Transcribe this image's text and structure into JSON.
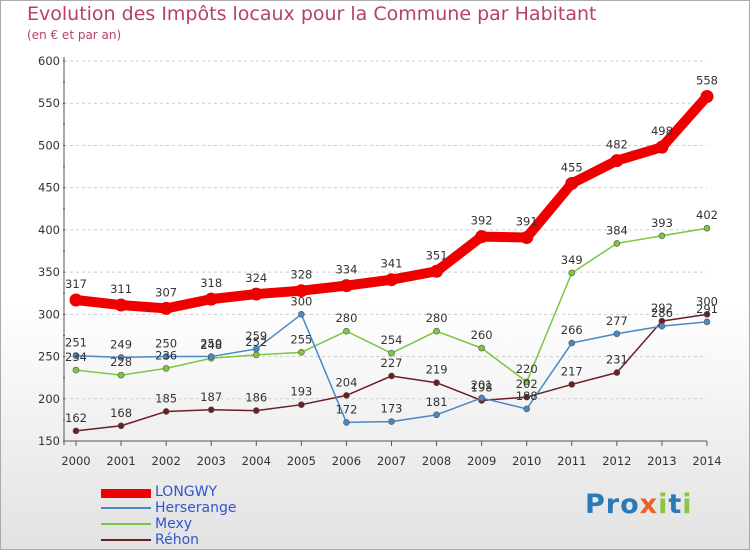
{
  "title": "Evolution des Impôts locaux pour la Commune par Habitant",
  "subtitle": "(en € et par an)",
  "logo_text": "Proxiti",
  "chart_data": {
    "type": "line",
    "title": "Evolution des Impôts locaux pour la Commune par Habitant",
    "subtitle": "(en € et par an)",
    "xlabel": "",
    "ylabel": "",
    "x": [
      "2000",
      "2001",
      "2002",
      "2003",
      "2004",
      "2005",
      "2006",
      "2007",
      "2008",
      "2009",
      "2010",
      "2011",
      "2012",
      "2013",
      "2014"
    ],
    "ylim": [
      150,
      600
    ],
    "yticks": [
      "150",
      "200",
      "250",
      "300",
      "350",
      "400",
      "450",
      "500",
      "550",
      "600"
    ],
    "grid": "horizontal",
    "legend_position": "bottom-left",
    "series": [
      {
        "name": "LONGWY",
        "color": "#ee0000",
        "values": [
          317,
          311,
          307,
          318,
          324,
          328,
          334,
          341,
          351,
          392,
          391,
          455,
          482,
          498,
          558
        ]
      },
      {
        "name": "Herserange",
        "color": "#4a88c4",
        "values": [
          251,
          249,
          250,
          250,
          259,
          300,
          172,
          173,
          181,
          201,
          188,
          266,
          277,
          286,
          291
        ]
      },
      {
        "name": "Mexy",
        "color": "#7cc642",
        "values": [
          234,
          228,
          236,
          248,
          252,
          255,
          280,
          254,
          280,
          260,
          220,
          349,
          384,
          393,
          402
        ]
      },
      {
        "name": "Réhon",
        "color": "#6b1f22",
        "values": [
          162,
          168,
          185,
          187,
          186,
          193,
          204,
          227,
          219,
          198,
          202,
          217,
          231,
          292,
          300
        ]
      }
    ]
  }
}
